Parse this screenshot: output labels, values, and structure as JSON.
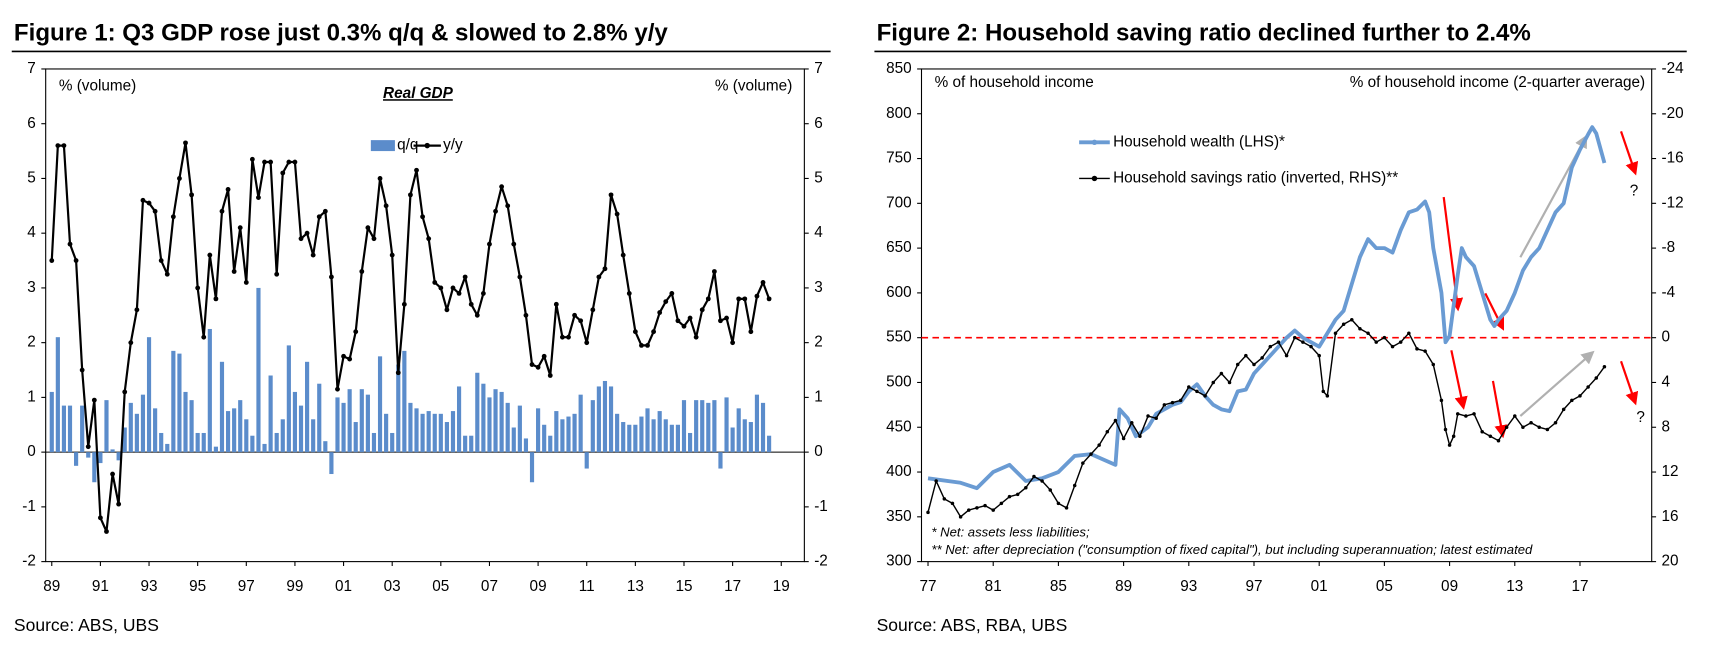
{
  "chart_data": [
    {
      "type": "combo",
      "title": "Figure 1: Q3 GDP rose just 0.3% q/q & slowed to 2.8% y/y",
      "subtitle": "Real GDP",
      "y_label": "% (volume)",
      "y2_label": "% (volume)",
      "source": "Source:  ABS, UBS",
      "legend": "top-center",
      "grid": false,
      "xlim": [
        1988.75,
        2019.95
      ],
      "xticks": [
        {
          "value": 1989,
          "label": "89"
        },
        {
          "value": 1991,
          "label": "91"
        },
        {
          "value": 1993,
          "label": "93"
        },
        {
          "value": 1995,
          "label": "95"
        },
        {
          "value": 1997,
          "label": "97"
        },
        {
          "value": 1999,
          "label": "99"
        },
        {
          "value": 2001,
          "label": "01"
        },
        {
          "value": 2003,
          "label": "03"
        },
        {
          "value": 2005,
          "label": "05"
        },
        {
          "value": 2007,
          "label": "07"
        },
        {
          "value": 2009,
          "label": "09"
        },
        {
          "value": 2011,
          "label": "11"
        },
        {
          "value": 2013,
          "label": "13"
        },
        {
          "value": 2015,
          "label": "15"
        },
        {
          "value": 2017,
          "label": "17"
        },
        {
          "value": 2019,
          "label": "19"
        }
      ],
      "ylim": [
        -2,
        7
      ],
      "yticks": [
        -2,
        -1,
        0,
        1,
        2,
        3,
        4,
        5,
        6,
        7
      ],
      "y2lim": [
        -2,
        7
      ],
      "y2ticks": [
        -2,
        -1,
        0,
        1,
        2,
        3,
        4,
        5,
        6,
        7
      ],
      "x": [
        1989,
        1989.25,
        1989.5,
        1989.75,
        1990,
        1990.25,
        1990.5,
        1990.75,
        1991,
        1991.25,
        1991.5,
        1991.75,
        1992,
        1992.25,
        1992.5,
        1992.75,
        1993,
        1993.25,
        1993.5,
        1993.75,
        1994,
        1994.25,
        1994.5,
        1994.75,
        1995,
        1995.25,
        1995.5,
        1995.75,
        1996,
        1996.25,
        1996.5,
        1996.75,
        1997,
        1997.25,
        1997.5,
        1997.75,
        1998,
        1998.25,
        1998.5,
        1998.75,
        1999,
        1999.25,
        1999.5,
        1999.75,
        2000,
        2000.25,
        2000.5,
        2000.75,
        2001,
        2001.25,
        2001.5,
        2001.75,
        2002,
        2002.25,
        2002.5,
        2002.75,
        2003,
        2003.25,
        2003.5,
        2003.75,
        2004,
        2004.25,
        2004.5,
        2004.75,
        2005,
        2005.25,
        2005.5,
        2005.75,
        2006,
        2006.25,
        2006.5,
        2006.75,
        2007,
        2007.25,
        2007.5,
        2007.75,
        2008,
        2008.25,
        2008.5,
        2008.75,
        2009,
        2009.25,
        2009.5,
        2009.75,
        2010,
        2010.25,
        2010.5,
        2010.75,
        2011,
        2011.25,
        2011.5,
        2011.75,
        2012,
        2012.25,
        2012.5,
        2012.75,
        2013,
        2013.25,
        2013.5,
        2013.75,
        2014,
        2014.25,
        2014.5,
        2014.75,
        2015,
        2015.25,
        2015.5,
        2015.75,
        2016,
        2016.25,
        2016.5,
        2016.75,
        2017,
        2017.25,
        2017.5,
        2017.75,
        2018,
        2018.25,
        2018.5
      ],
      "series": [
        {
          "name": "q/q",
          "type": "bar",
          "color": "#5b8ccb",
          "values": [
            1.1,
            2.1,
            0.85,
            0.85,
            -0.25,
            0.85,
            -0.1,
            -0.55,
            -0.2,
            0.95,
            0.05,
            -0.15,
            0.45,
            0.9,
            0.7,
            1.05,
            2.1,
            0.8,
            0.35,
            0.15,
            1.85,
            1.8,
            1.1,
            0.95,
            0.35,
            0.35,
            2.25,
            0.1,
            1.65,
            0.75,
            0.8,
            0.95,
            0.6,
            0.3,
            3.0,
            0.15,
            1.4,
            0.35,
            0.6,
            1.95,
            1.1,
            0.85,
            1.65,
            0.6,
            1.25,
            0.2,
            -0.4,
            1.0,
            0.9,
            1.15,
            0.55,
            1.15,
            1.05,
            0.35,
            1.75,
            0.7,
            0.35,
            1.6,
            1.85,
            0.9,
            0.8,
            0.7,
            0.75,
            0.7,
            0.7,
            0.55,
            0.75,
            1.2,
            0.3,
            0.3,
            1.45,
            1.25,
            1.0,
            1.15,
            1.1,
            0.9,
            0.45,
            0.85,
            0.25,
            -0.55,
            0.8,
            0.5,
            0.3,
            0.75,
            0.6,
            0.65,
            0.7,
            1.05,
            -0.3,
            0.95,
            1.2,
            1.3,
            1.2,
            0.7,
            0.55,
            0.5,
            0.5,
            0.65,
            0.8,
            0.6,
            0.75,
            0.6,
            0.5,
            0.5,
            0.95,
            0.35,
            0.95,
            0.95,
            0.9,
            0.95,
            -0.3,
            1.0,
            0.45,
            0.8,
            0.6,
            0.55,
            1.05,
            0.9,
            0.3
          ]
        },
        {
          "name": "y/y",
          "type": "line",
          "color": "#000000",
          "values": [
            3.5,
            5.6,
            5.6,
            3.8,
            3.5,
            1.5,
            0.1,
            0.95,
            -1.2,
            -1.45,
            -0.4,
            -0.95,
            1.1,
            2.0,
            2.6,
            4.6,
            4.55,
            4.4,
            3.5,
            3.25,
            4.3,
            5.0,
            5.65,
            4.7,
            3.0,
            2.1,
            3.6,
            2.8,
            4.4,
            4.8,
            3.3,
            4.1,
            3.1,
            5.35,
            4.65,
            5.3,
            5.3,
            3.25,
            5.1,
            5.3,
            5.3,
            3.9,
            4.0,
            3.6,
            4.3,
            4.4,
            3.2,
            1.15,
            1.75,
            1.7,
            2.2,
            3.3,
            4.1,
            3.9,
            5.0,
            4.5,
            3.6,
            1.45,
            2.7,
            4.7,
            5.15,
            4.3,
            3.9,
            3.1,
            3.0,
            2.6,
            3.0,
            2.9,
            3.2,
            2.7,
            2.5,
            2.9,
            3.8,
            4.4,
            4.85,
            4.5,
            3.8,
            3.2,
            2.5,
            1.6,
            1.55,
            1.75,
            1.4,
            2.7,
            2.1,
            2.1,
            2.5,
            2.4,
            2.0,
            2.6,
            3.2,
            3.35,
            4.7,
            4.35,
            3.6,
            2.9,
            2.2,
            1.95,
            1.95,
            2.2,
            2.55,
            2.75,
            2.9,
            2.4,
            2.3,
            2.45,
            2.1,
            2.6,
            2.8,
            3.3,
            2.4,
            2.45,
            2.0,
            2.8,
            2.8,
            2.2,
            2.85,
            3.1,
            2.8
          ]
        }
      ]
    },
    {
      "type": "line",
      "title": "Figure 2: Household saving ratio declined further to 2.4%",
      "y_label": "% of household income",
      "y2_label": "% of household income (2-quarter average)",
      "source": "Source:  ABS, RBA, UBS",
      "notes": [
        "* Net: assets less liabilities;",
        "** Net: after depreciation (\"consumption of fixed capital\"), but including superannuation; latest estimated"
      ],
      "annotations": [
        "?",
        "?"
      ],
      "legend": "top-left",
      "grid": false,
      "reference_line": {
        "value": 550,
        "color": "#ff0000"
      },
      "xlim": [
        1976.6,
        2021.4
      ],
      "xticks": [
        {
          "value": 1977,
          "label": "77"
        },
        {
          "value": 1981,
          "label": "81"
        },
        {
          "value": 1985,
          "label": "85"
        },
        {
          "value": 1989,
          "label": "89"
        },
        {
          "value": 1993,
          "label": "93"
        },
        {
          "value": 1997,
          "label": "97"
        },
        {
          "value": 2001,
          "label": "01"
        },
        {
          "value": 2005,
          "label": "05"
        },
        {
          "value": 2009,
          "label": "09"
        },
        {
          "value": 2013,
          "label": "13"
        },
        {
          "value": 2017,
          "label": "17"
        }
      ],
      "ylim": [
        300,
        850
      ],
      "yticks": [
        300,
        350,
        400,
        450,
        500,
        550,
        600,
        650,
        700,
        750,
        800,
        850
      ],
      "y2lim": [
        20,
        -24
      ],
      "y2ticks": [
        20,
        16,
        12,
        8,
        4,
        0,
        -4,
        -8,
        -12,
        -16,
        -20,
        -24
      ],
      "series": [
        {
          "name": "Household wealth (LHS)*",
          "color": "#6a9bd3",
          "width": 3.5,
          "x": [
            1977,
            1979,
            1980,
            1981,
            1982,
            1983,
            1984,
            1985,
            1986,
            1987,
            1988.5,
            1988.75,
            1989.25,
            1989.75,
            1990.5,
            1991,
            1991.5,
            1992,
            1992.5,
            1993,
            1993.5,
            1994,
            1994.5,
            1995,
            1995.5,
            1996,
            1996.5,
            1997,
            1997.5,
            1998,
            1998.5,
            1999,
            1999.5,
            2000,
            2000.5,
            2001,
            2001.5,
            2002,
            2002.5,
            2003,
            2003.5,
            2004,
            2004.5,
            2005,
            2005.5,
            2006,
            2006.5,
            2007,
            2007.5,
            2007.75,
            2008,
            2008.5,
            2008.75,
            2009,
            2009.5,
            2009.75,
            2010,
            2010.5,
            2011,
            2011.5,
            2011.75,
            2012,
            2012.5,
            2013,
            2013.5,
            2014,
            2014.5,
            2015,
            2015.5,
            2016,
            2016.5,
            2017,
            2017.5,
            2017.75,
            2018,
            2018.5
          ],
          "values": [
            393,
            388,
            382,
            400,
            408,
            390,
            393,
            400,
            418,
            420,
            408,
            470,
            460,
            440,
            450,
            465,
            470,
            475,
            478,
            490,
            498,
            485,
            475,
            470,
            468,
            490,
            492,
            510,
            520,
            530,
            540,
            550,
            558,
            550,
            545,
            540,
            555,
            570,
            580,
            610,
            640,
            660,
            650,
            650,
            645,
            670,
            690,
            693,
            702,
            690,
            650,
            600,
            545,
            552,
            620,
            650,
            640,
            630,
            600,
            570,
            563,
            570,
            580,
            600,
            625,
            640,
            650,
            670,
            690,
            700,
            740,
            760,
            777,
            785,
            778,
            745
          ]
        },
        {
          "name": "Household savings ratio (inverted, RHS)**",
          "color": "#000000",
          "width": 1.3,
          "axis": "y2",
          "x": [
            1977,
            1977.5,
            1978,
            1978.5,
            1979,
            1979.5,
            1980,
            1980.5,
            1981,
            1981.5,
            1982,
            1982.5,
            1983,
            1983.5,
            1984,
            1984.5,
            1985,
            1985.5,
            1986,
            1986.5,
            1987,
            1987.5,
            1988,
            1988.5,
            1989,
            1989.5,
            1990,
            1990.5,
            1991,
            1991.5,
            1992,
            1992.5,
            1993,
            1993.5,
            1994,
            1994.5,
            1995,
            1995.5,
            1996,
            1996.5,
            1997,
            1997.5,
            1998,
            1998.5,
            1999,
            1999.5,
            2000,
            2000.5,
            2001,
            2001.25,
            2001.5,
            2002,
            2002.5,
            2003,
            2003.5,
            2004,
            2004.5,
            2005,
            2005.5,
            2006,
            2006.5,
            2007,
            2007.5,
            2008,
            2008.5,
            2008.75,
            2009,
            2009.25,
            2009.5,
            2010,
            2010.5,
            2011,
            2011.5,
            2012,
            2012.5,
            2013,
            2013.5,
            2014,
            2014.5,
            2015,
            2015.5,
            2016,
            2016.5,
            2017,
            2017.5,
            2018,
            2018.5
          ],
          "values": [
            15.6,
            12.8,
            14.4,
            14.8,
            16,
            15.4,
            15.2,
            15.0,
            15.4,
            14.8,
            14.2,
            14.0,
            13.4,
            12.4,
            12.8,
            13.6,
            14.8,
            15.2,
            13.2,
            11.2,
            10.4,
            9.6,
            8.4,
            7.4,
            9.0,
            7.6,
            8.8,
            7.0,
            7.2,
            6.0,
            5.8,
            5.6,
            4.4,
            4.8,
            5.2,
            4.0,
            3.2,
            4.0,
            2.4,
            1.6,
            2.4,
            1.8,
            0.8,
            0.4,
            1.6,
            0,
            0.4,
            0.8,
            1.6,
            4.8,
            5.2,
            -0.4,
            -1.2,
            -1.6,
            -0.8,
            -0.4,
            0.4,
            0,
            0.8,
            0.4,
            -0.4,
            1.0,
            1.2,
            2.4,
            5.6,
            8.2,
            9.6,
            8.8,
            6.8,
            7.0,
            6.8,
            8.4,
            8.8,
            9.2,
            8.0,
            7.0,
            8.0,
            7.6,
            8.0,
            8.2,
            7.6,
            6.4,
            5.6,
            5.2,
            4.4,
            3.6,
            2.6
          ]
        }
      ]
    }
  ]
}
